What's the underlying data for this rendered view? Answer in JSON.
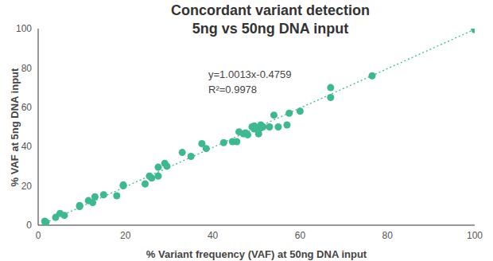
{
  "chart_data": {
    "type": "scatter",
    "title": "Concordant variant detection",
    "subtitle": "5ng vs 50ng DNA input",
    "x_label": "% Variant frequency (VAF) at 50ng DNA input",
    "y_label": "% VAF at 5ng DNA input",
    "x": [
      1.5,
      1.8,
      4,
      5,
      6,
      9.5,
      9.5,
      11.5,
      12.5,
      13,
      15,
      18,
      19.5,
      19.5,
      24.5,
      25.5,
      26,
      27.5,
      27.5,
      29,
      29.5,
      33,
      35,
      37.5,
      38.5,
      42.5,
      44.5,
      45.5,
      46,
      47,
      47.5,
      48,
      49,
      49.5,
      49.5,
      50,
      50.5,
      51,
      51,
      51.5,
      53,
      54,
      55,
      57,
      57.5,
      60,
      67,
      67,
      76.5,
      100,
      100
    ],
    "values": [
      2,
      1.5,
      4,
      6,
      5,
      9.5,
      10,
      12.5,
      11.5,
      14.5,
      15.5,
      15,
      20,
      20.5,
      21,
      25,
      24,
      25,
      29.5,
      31.5,
      30,
      37,
      35,
      41.5,
      39,
      42,
      42.5,
      42.5,
      47.5,
      46.5,
      47,
      46,
      50,
      49,
      50.5,
      49,
      46.5,
      51,
      49.5,
      50,
      50,
      56,
      50,
      51,
      57,
      58,
      70,
      65,
      76,
      100,
      99.5
    ],
    "color": "#3cb98e",
    "xlim": [
      0,
      100
    ],
    "ylim": [
      0,
      100
    ],
    "xticks": [
      0,
      20,
      40,
      60,
      80,
      100
    ],
    "yticks": [
      0,
      20,
      40,
      60,
      80,
      100
    ],
    "grid": false,
    "annotations": [
      "y=1.0013x-0.4759",
      "R²=0.9978"
    ],
    "trendline": {
      "slope": 1.0013,
      "intercept": -0.4759,
      "line_style": "dotted"
    }
  }
}
